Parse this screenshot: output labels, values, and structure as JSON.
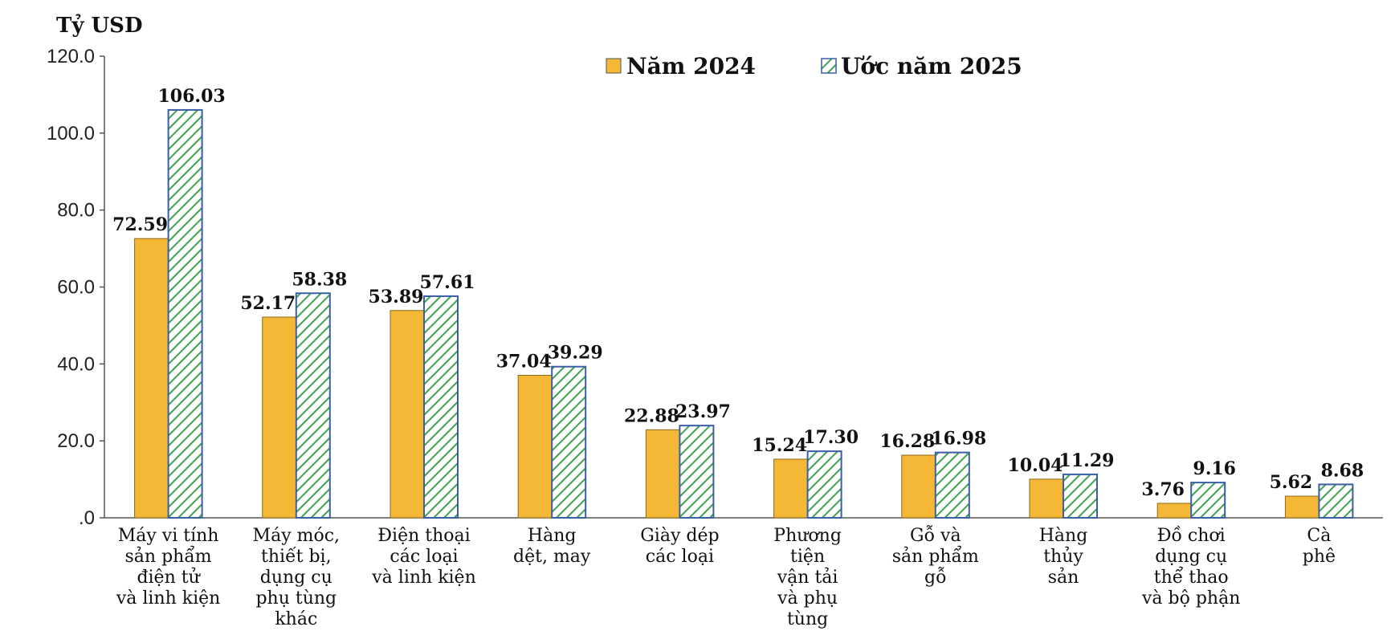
{
  "chart_data": {
    "type": "bar",
    "ylabel": "Tỷ USD",
    "ylim": [
      0,
      120
    ],
    "yticks": [
      "120.0",
      "100.0",
      "80.0",
      "60.0",
      "40.0",
      "20.0",
      ".0"
    ],
    "legend_position": "top",
    "categories": [
      [
        "Máy vi tính",
        "sản phẩm",
        "điện tử",
        "và linh kiện"
      ],
      [
        "Máy móc,",
        "thiết bị,",
        "dụng cụ",
        "phụ tùng",
        "khác"
      ],
      [
        "Điện thoại",
        "các loại",
        "và linh kiện"
      ],
      [
        "Hàng",
        "dệt, may"
      ],
      [
        "Giày dép",
        "các loại"
      ],
      [
        "Phương",
        "tiện",
        "vận tải",
        "và phụ",
        "tùng"
      ],
      [
        "Gỗ và",
        "sản phẩm",
        "gỗ"
      ],
      [
        "Hàng",
        "thủy",
        "sản"
      ],
      [
        "Đồ chơi",
        "dụng cụ",
        "thể thao",
        "và bộ phận"
      ],
      [
        "Cà",
        "phê"
      ]
    ],
    "series": [
      {
        "name": "Năm 2024",
        "color": "#F5B836",
        "values": [
          72.59,
          52.17,
          53.89,
          37.04,
          22.88,
          15.24,
          16.28,
          10.04,
          3.76,
          5.62
        ],
        "labels": [
          "72.59",
          "52.17",
          "53.89",
          "37.04",
          "22.88",
          "15.24",
          "16.28",
          "10.04",
          "3.76",
          "5.62"
        ]
      },
      {
        "name": "Ước năm 2025",
        "color": "#3FA34D",
        "pattern": "diagonal-hatch",
        "values": [
          106.03,
          58.38,
          57.61,
          39.29,
          23.97,
          17.3,
          16.98,
          11.29,
          9.16,
          8.68
        ],
        "labels": [
          "106.03",
          "58.38",
          "57.61",
          "39.29",
          "23.97",
          "17.30",
          "16.98",
          "11.29",
          "9.16",
          "8.68"
        ]
      }
    ]
  }
}
